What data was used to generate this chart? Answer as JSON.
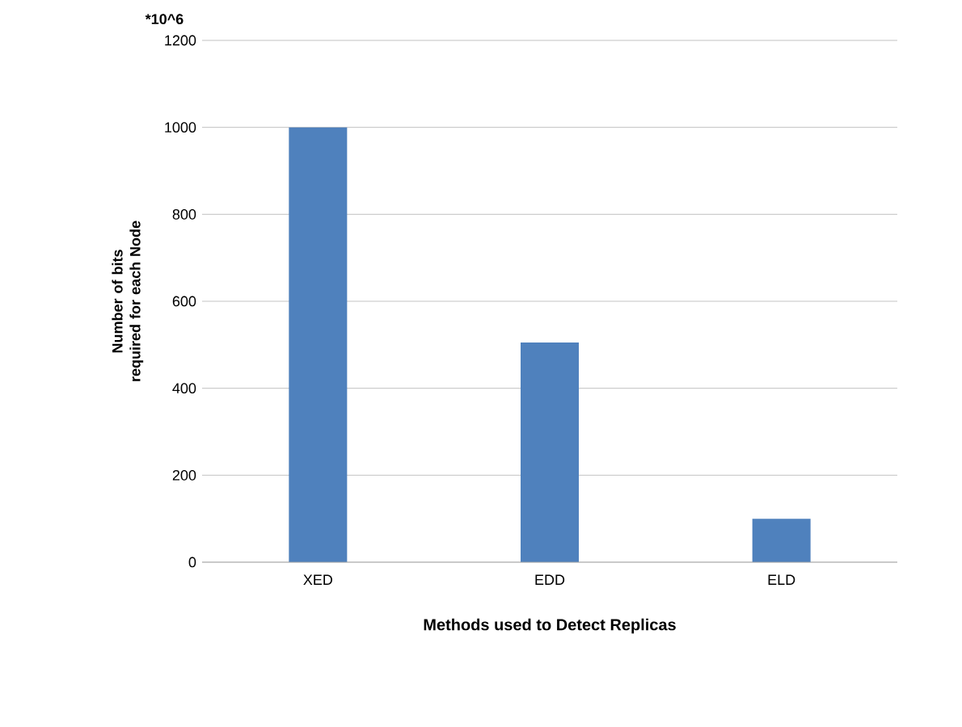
{
  "chart_data": {
    "type": "bar",
    "xlabel": "Methods used to Detect Replicas",
    "ylabel": "Number of bits required for each Node",
    "annotations": [
      "*10^6"
    ],
    "categories": [
      "XED",
      "EDD",
      "ELD"
    ],
    "values": [
      1000,
      505,
      100
    ],
    "color": "#4f81bd",
    "ylim": [
      0,
      1200
    ],
    "yticks": [
      0,
      200,
      400,
      600,
      800,
      1000,
      1200
    ],
    "grid": "y"
  }
}
